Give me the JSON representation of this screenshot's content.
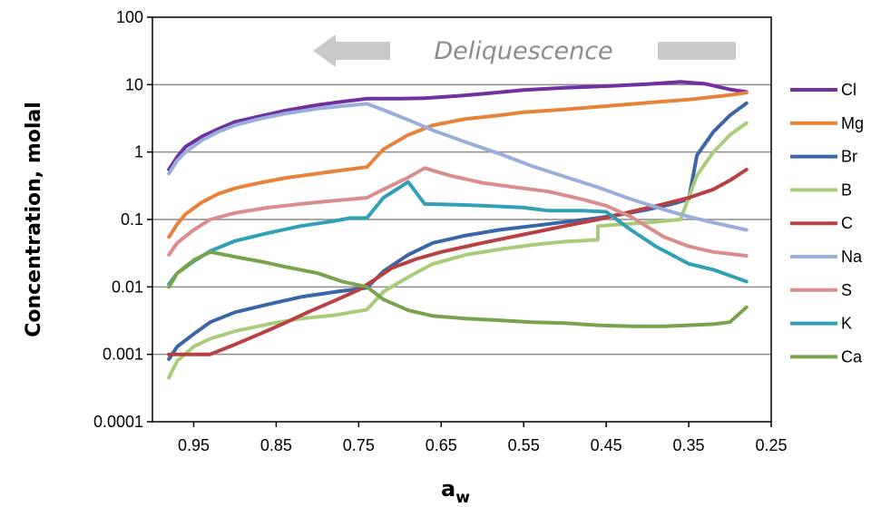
{
  "chart_data": {
    "type": "line",
    "ylabel": "Concentration, molal",
    "xlabel_main": "a",
    "xlabel_sub": "w",
    "x_axis_reversed": true,
    "xlim": [
      0.25,
      1.0
    ],
    "ylim": [
      0.0001,
      100
    ],
    "y_scale": "log",
    "grid": "horizontal",
    "legend": "right",
    "x_ticks": [
      0.95,
      0.85,
      0.75,
      0.65,
      0.55,
      0.45,
      0.35,
      0.25
    ],
    "x_tick_labels": [
      "0.95",
      "0.85",
      "0.75",
      "0.65",
      "0.55",
      "0.45",
      "0.35",
      "0.25"
    ],
    "y_ticks": [
      0.0001,
      0.001,
      0.01,
      0.1,
      1,
      10,
      100
    ],
    "y_tick_labels": [
      "0.0001",
      "0.001",
      "0.01",
      "0.1",
      "1",
      "10",
      "100"
    ],
    "annotation": {
      "text": "Deliquescence",
      "arrow_direction": "left",
      "color": "#c9c9c9"
    },
    "series": [
      {
        "name": "Cl",
        "color": "#7030a0",
        "points": [
          [
            0.98,
            0.55
          ],
          [
            0.97,
            0.85
          ],
          [
            0.96,
            1.2
          ],
          [
            0.94,
            1.7
          ],
          [
            0.92,
            2.2
          ],
          [
            0.9,
            2.8
          ],
          [
            0.87,
            3.4
          ],
          [
            0.84,
            4.1
          ],
          [
            0.8,
            5.0
          ],
          [
            0.77,
            5.6
          ],
          [
            0.74,
            6.2
          ],
          [
            0.7,
            6.2
          ],
          [
            0.67,
            6.3
          ],
          [
            0.63,
            6.8
          ],
          [
            0.6,
            7.3
          ],
          [
            0.55,
            8.3
          ],
          [
            0.5,
            9.0
          ],
          [
            0.45,
            9.5
          ],
          [
            0.4,
            10.2
          ],
          [
            0.36,
            11.0
          ],
          [
            0.33,
            10.3
          ],
          [
            0.3,
            8.5
          ],
          [
            0.28,
            7.8
          ]
        ]
      },
      {
        "name": "Mg",
        "color": "#e6823a",
        "points": [
          [
            0.98,
            0.055
          ],
          [
            0.97,
            0.085
          ],
          [
            0.96,
            0.12
          ],
          [
            0.94,
            0.18
          ],
          [
            0.92,
            0.24
          ],
          [
            0.9,
            0.29
          ],
          [
            0.87,
            0.35
          ],
          [
            0.84,
            0.41
          ],
          [
            0.8,
            0.48
          ],
          [
            0.77,
            0.54
          ],
          [
            0.74,
            0.6
          ],
          [
            0.72,
            1.1
          ],
          [
            0.69,
            1.8
          ],
          [
            0.66,
            2.5
          ],
          [
            0.62,
            3.1
          ],
          [
            0.58,
            3.5
          ],
          [
            0.55,
            3.9
          ],
          [
            0.5,
            4.3
          ],
          [
            0.45,
            4.8
          ],
          [
            0.4,
            5.4
          ],
          [
            0.35,
            6.0
          ],
          [
            0.3,
            7.0
          ],
          [
            0.28,
            7.6
          ]
        ]
      },
      {
        "name": "Br",
        "color": "#3a66a8",
        "points": [
          [
            0.98,
            0.00085
          ],
          [
            0.97,
            0.0013
          ],
          [
            0.95,
            0.002
          ],
          [
            0.93,
            0.003
          ],
          [
            0.9,
            0.0042
          ],
          [
            0.86,
            0.0055
          ],
          [
            0.82,
            0.0071
          ],
          [
            0.78,
            0.0084
          ],
          [
            0.74,
            0.0097
          ],
          [
            0.72,
            0.017
          ],
          [
            0.69,
            0.03
          ],
          [
            0.66,
            0.045
          ],
          [
            0.62,
            0.058
          ],
          [
            0.58,
            0.07
          ],
          [
            0.54,
            0.08
          ],
          [
            0.5,
            0.092
          ],
          [
            0.46,
            0.105
          ],
          [
            0.43,
            0.12
          ],
          [
            0.4,
            0.14
          ],
          [
            0.37,
            0.17
          ],
          [
            0.35,
            0.2
          ],
          [
            0.34,
            0.9
          ],
          [
            0.32,
            2.0
          ],
          [
            0.3,
            3.5
          ],
          [
            0.28,
            5.3
          ]
        ]
      },
      {
        "name": "B",
        "color": "#a9cc7a",
        "points": [
          [
            0.98,
            0.00045
          ],
          [
            0.97,
            0.0008
          ],
          [
            0.95,
            0.0013
          ],
          [
            0.93,
            0.0017
          ],
          [
            0.9,
            0.0022
          ],
          [
            0.86,
            0.0028
          ],
          [
            0.82,
            0.0034
          ],
          [
            0.78,
            0.0038
          ],
          [
            0.74,
            0.0046
          ],
          [
            0.72,
            0.0085
          ],
          [
            0.69,
            0.014
          ],
          [
            0.66,
            0.022
          ],
          [
            0.62,
            0.03
          ],
          [
            0.58,
            0.036
          ],
          [
            0.54,
            0.042
          ],
          [
            0.5,
            0.047
          ],
          [
            0.46,
            0.05
          ],
          [
            0.46,
            0.08
          ],
          [
            0.43,
            0.085
          ],
          [
            0.4,
            0.09
          ],
          [
            0.36,
            0.1
          ],
          [
            0.34,
            0.45
          ],
          [
            0.32,
            1.0
          ],
          [
            0.3,
            1.8
          ],
          [
            0.28,
            2.7
          ]
        ]
      },
      {
        "name": "C",
        "color": "#b84040",
        "points": [
          [
            0.98,
            0.001
          ],
          [
            0.96,
            0.001
          ],
          [
            0.93,
            0.001
          ],
          [
            0.9,
            0.0014
          ],
          [
            0.87,
            0.002
          ],
          [
            0.84,
            0.0029
          ],
          [
            0.81,
            0.0043
          ],
          [
            0.78,
            0.0062
          ],
          [
            0.75,
            0.009
          ],
          [
            0.73,
            0.013
          ],
          [
            0.71,
            0.019
          ],
          [
            0.68,
            0.026
          ],
          [
            0.65,
            0.033
          ],
          [
            0.6,
            0.045
          ],
          [
            0.55,
            0.06
          ],
          [
            0.5,
            0.08
          ],
          [
            0.46,
            0.1
          ],
          [
            0.42,
            0.13
          ],
          [
            0.38,
            0.17
          ],
          [
            0.35,
            0.21
          ],
          [
            0.32,
            0.28
          ],
          [
            0.3,
            0.38
          ],
          [
            0.28,
            0.55
          ]
        ]
      },
      {
        "name": "Na",
        "color": "#9aaedb",
        "points": [
          [
            0.98,
            0.48
          ],
          [
            0.97,
            0.75
          ],
          [
            0.96,
            1.0
          ],
          [
            0.94,
            1.5
          ],
          [
            0.92,
            2.0
          ],
          [
            0.9,
            2.5
          ],
          [
            0.87,
            3.1
          ],
          [
            0.84,
            3.7
          ],
          [
            0.8,
            4.4
          ],
          [
            0.77,
            4.8
          ],
          [
            0.74,
            5.2
          ],
          [
            0.72,
            4.2
          ],
          [
            0.69,
            3.0
          ],
          [
            0.66,
            2.1
          ],
          [
            0.62,
            1.4
          ],
          [
            0.58,
            0.95
          ],
          [
            0.54,
            0.62
          ],
          [
            0.5,
            0.43
          ],
          [
            0.46,
            0.3
          ],
          [
            0.42,
            0.2
          ],
          [
            0.38,
            0.14
          ],
          [
            0.35,
            0.11
          ],
          [
            0.32,
            0.09
          ],
          [
            0.28,
            0.07
          ]
        ]
      },
      {
        "name": "S",
        "color": "#d98d8c",
        "points": [
          [
            0.98,
            0.03
          ],
          [
            0.97,
            0.045
          ],
          [
            0.95,
            0.07
          ],
          [
            0.93,
            0.1
          ],
          [
            0.9,
            0.125
          ],
          [
            0.86,
            0.15
          ],
          [
            0.82,
            0.17
          ],
          [
            0.78,
            0.19
          ],
          [
            0.74,
            0.21
          ],
          [
            0.72,
            0.28
          ],
          [
            0.69,
            0.42
          ],
          [
            0.67,
            0.58
          ],
          [
            0.64,
            0.45
          ],
          [
            0.6,
            0.35
          ],
          [
            0.56,
            0.3
          ],
          [
            0.52,
            0.26
          ],
          [
            0.48,
            0.2
          ],
          [
            0.45,
            0.16
          ],
          [
            0.42,
            0.11
          ],
          [
            0.38,
            0.055
          ],
          [
            0.35,
            0.04
          ],
          [
            0.32,
            0.033
          ],
          [
            0.28,
            0.029
          ]
        ]
      },
      {
        "name": "K",
        "color": "#31a0b6",
        "points": [
          [
            0.98,
            0.011
          ],
          [
            0.97,
            0.016
          ],
          [
            0.95,
            0.024
          ],
          [
            0.93,
            0.034
          ],
          [
            0.9,
            0.048
          ],
          [
            0.86,
            0.063
          ],
          [
            0.82,
            0.08
          ],
          [
            0.78,
            0.095
          ],
          [
            0.76,
            0.105
          ],
          [
            0.74,
            0.105
          ],
          [
            0.72,
            0.21
          ],
          [
            0.7,
            0.3
          ],
          [
            0.69,
            0.36
          ],
          [
            0.67,
            0.17
          ],
          [
            0.63,
            0.165
          ],
          [
            0.6,
            0.16
          ],
          [
            0.55,
            0.15
          ],
          [
            0.52,
            0.135
          ],
          [
            0.48,
            0.135
          ],
          [
            0.45,
            0.13
          ],
          [
            0.42,
            0.07
          ],
          [
            0.39,
            0.04
          ],
          [
            0.35,
            0.022
          ],
          [
            0.32,
            0.018
          ],
          [
            0.28,
            0.012
          ]
        ]
      },
      {
        "name": "Ca",
        "color": "#76a34b",
        "points": [
          [
            0.98,
            0.01
          ],
          [
            0.97,
            0.016
          ],
          [
            0.95,
            0.025
          ],
          [
            0.93,
            0.033
          ],
          [
            0.9,
            0.028
          ],
          [
            0.87,
            0.024
          ],
          [
            0.84,
            0.02
          ],
          [
            0.8,
            0.016
          ],
          [
            0.77,
            0.012
          ],
          [
            0.74,
            0.01
          ],
          [
            0.72,
            0.0065
          ],
          [
            0.69,
            0.0045
          ],
          [
            0.66,
            0.0037
          ],
          [
            0.62,
            0.0034
          ],
          [
            0.58,
            0.0032
          ],
          [
            0.54,
            0.003
          ],
          [
            0.5,
            0.0029
          ],
          [
            0.46,
            0.0027
          ],
          [
            0.42,
            0.0026
          ],
          [
            0.38,
            0.0026
          ],
          [
            0.35,
            0.0027
          ],
          [
            0.32,
            0.0028
          ],
          [
            0.3,
            0.003
          ],
          [
            0.28,
            0.005
          ]
        ]
      }
    ]
  }
}
